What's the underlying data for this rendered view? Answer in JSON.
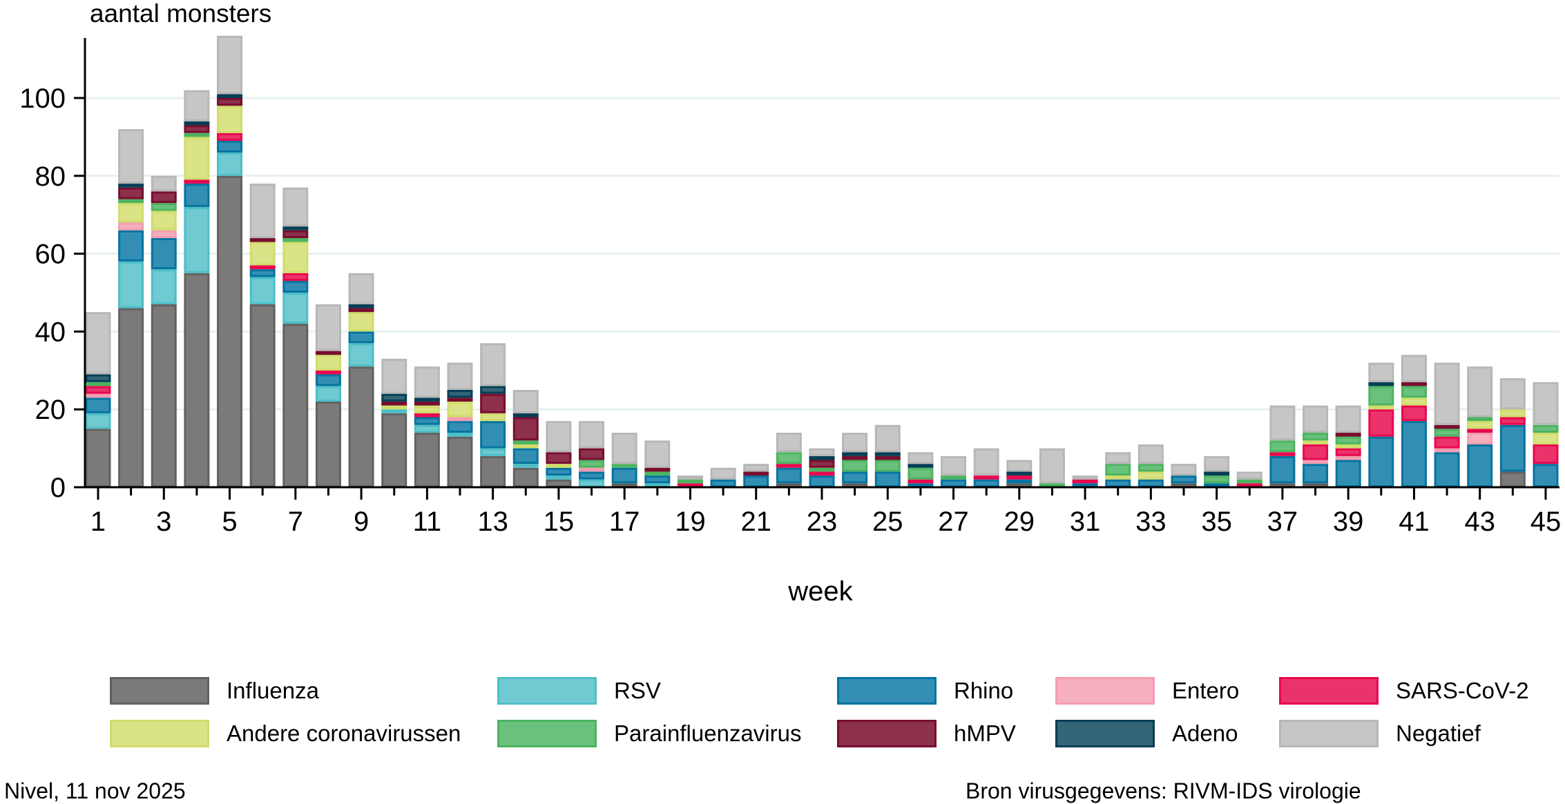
{
  "chart_data": {
    "type": "bar",
    "stacked": true,
    "title": "",
    "ylabel": "aantal monsters",
    "xlabel": "week",
    "ylim": [
      0,
      116
    ],
    "yticks": [
      0,
      20,
      40,
      60,
      80,
      100
    ],
    "xtick_labels": [
      "1",
      "3",
      "5",
      "7",
      "9",
      "11",
      "13",
      "15",
      "17",
      "19",
      "21",
      "23",
      "25",
      "27",
      "29",
      "31",
      "33",
      "35",
      "37",
      "39",
      "41",
      "43",
      "45"
    ],
    "grid": "horizontal",
    "legend_position": "bottom",
    "categories": [
      1,
      2,
      3,
      4,
      5,
      6,
      7,
      8,
      9,
      10,
      11,
      12,
      13,
      14,
      15,
      16,
      17,
      18,
      19,
      20,
      21,
      22,
      23,
      24,
      25,
      26,
      27,
      28,
      29,
      30,
      31,
      32,
      33,
      34,
      35,
      36,
      37,
      38,
      39,
      40,
      41,
      42,
      43,
      44,
      45
    ],
    "series": [
      {
        "name": "Influenza",
        "color": "#7b7a79",
        "border": "#636160",
        "values": [
          15,
          46,
          47,
          55,
          80,
          47,
          42,
          22,
          31,
          19,
          14,
          13,
          8,
          5,
          2,
          0,
          1,
          0,
          0,
          0,
          0,
          1,
          0,
          1,
          0,
          0,
          0,
          0,
          1,
          0,
          0,
          0,
          0,
          1,
          0,
          0,
          1,
          1,
          0,
          0,
          0,
          0,
          0,
          4,
          0
        ]
      },
      {
        "name": "RSV",
        "color": "#6fcad1",
        "border": "#4dbec7",
        "values": [
          4,
          12,
          9,
          17,
          6,
          7,
          8,
          4,
          6,
          1,
          2,
          1,
          2,
          1,
          1,
          2,
          0,
          1,
          0,
          0,
          0,
          0,
          0,
          0,
          0,
          0,
          0,
          0,
          0,
          0,
          0,
          0,
          0,
          0,
          0,
          0,
          0,
          0,
          0,
          0,
          0,
          0,
          0,
          0,
          0
        ]
      },
      {
        "name": "Rhino",
        "color": "#328fb3",
        "border": "#0573a0",
        "values": [
          4,
          8,
          8,
          6,
          3,
          2,
          3,
          3,
          3,
          0,
          2,
          3,
          7,
          4,
          2,
          2,
          4,
          2,
          0,
          2,
          3,
          4,
          3,
          3,
          4,
          1,
          2,
          2,
          1,
          0,
          1,
          2,
          2,
          2,
          1,
          0,
          7,
          5,
          7,
          13,
          17,
          9,
          11,
          12,
          6
        ]
      },
      {
        "name": "Entero",
        "color": "#f5afbf",
        "border": "#f29db2",
        "values": [
          1,
          2,
          2,
          0,
          0,
          0,
          0,
          0,
          0,
          0,
          0,
          1,
          0,
          0,
          0,
          1,
          0,
          0,
          0,
          0,
          0,
          0,
          0,
          0,
          0,
          0,
          0,
          0,
          0,
          0,
          0,
          0,
          0,
          0,
          0,
          0,
          0,
          1,
          1,
          0,
          0,
          1,
          3,
          0,
          0
        ]
      },
      {
        "name": "SARS-CoV-2",
        "color": "#ea336a",
        "border": "#e8084f",
        "values": [
          2,
          0,
          0,
          1,
          2,
          1,
          2,
          1,
          0,
          0,
          1,
          0,
          0,
          0,
          0,
          0,
          0,
          0,
          1,
          0,
          0,
          1,
          1,
          0,
          0,
          1,
          0,
          1,
          1,
          0,
          1,
          0,
          0,
          0,
          0,
          1,
          1,
          4,
          2,
          7,
          4,
          3,
          1,
          2,
          5
        ]
      },
      {
        "name": "Andere coronavirussen",
        "color": "#dae386",
        "border": "#d0dd6a",
        "values": [
          0,
          5,
          5,
          11,
          7,
          6,
          8,
          4,
          5,
          1,
          2,
          4,
          2,
          1,
          1,
          0,
          0,
          0,
          0,
          0,
          0,
          0,
          0,
          0,
          0,
          0,
          0,
          0,
          0,
          0,
          0,
          1,
          2,
          0,
          0,
          0,
          0,
          1,
          1,
          1,
          2,
          0,
          2,
          2,
          3
        ]
      },
      {
        "name": "Parainfluenzavirus",
        "color": "#6ac17b",
        "border": "#4cb460",
        "values": [
          1,
          1,
          2,
          1,
          0,
          0,
          1,
          0,
          0,
          0,
          0,
          0,
          0,
          1,
          0,
          2,
          1,
          1,
          1,
          0,
          0,
          3,
          1,
          3,
          3,
          3,
          1,
          0,
          0,
          1,
          0,
          3,
          2,
          0,
          2,
          1,
          3,
          2,
          2,
          5,
          3,
          2,
          1,
          0,
          2
        ]
      },
      {
        "name": "hMPV",
        "color": "#8c304c",
        "border": "#780e2e",
        "values": [
          0,
          3,
          3,
          2,
          2,
          1,
          2,
          1,
          1,
          1,
          1,
          1,
          5,
          6,
          3,
          3,
          0,
          1,
          0,
          0,
          1,
          0,
          2,
          1,
          1,
          0,
          0,
          0,
          0,
          0,
          0,
          0,
          0,
          0,
          0,
          0,
          0,
          0,
          1,
          0,
          1,
          1,
          0,
          0,
          0
        ]
      },
      {
        "name": "Adeno",
        "color": "#336577",
        "border": "#043e56",
        "values": [
          2,
          1,
          0,
          1,
          1,
          0,
          1,
          0,
          1,
          2,
          1,
          2,
          2,
          1,
          0,
          0,
          0,
          0,
          0,
          0,
          0,
          0,
          1,
          1,
          1,
          1,
          0,
          0,
          1,
          0,
          0,
          0,
          0,
          0,
          1,
          0,
          0,
          0,
          0,
          1,
          0,
          0,
          0,
          0,
          0
        ]
      },
      {
        "name": "Negatief",
        "color": "#c6c6c6",
        "border": "#b7b7b7",
        "values": [
          16,
          14,
          4,
          8,
          15,
          14,
          10,
          12,
          8,
          9,
          8,
          7,
          11,
          6,
          8,
          7,
          8,
          7,
          1,
          3,
          2,
          5,
          2,
          5,
          7,
          3,
          5,
          7,
          3,
          9,
          1,
          3,
          5,
          3,
          4,
          2,
          9,
          7,
          7,
          5,
          7,
          16,
          13,
          8,
          11
        ]
      }
    ],
    "legend_order": [
      "Influenza",
      "RSV",
      "Rhino",
      "Entero",
      "SARS-CoV-2",
      "Andere coronavirussen",
      "Parainfluenzavirus",
      "hMPV",
      "Adeno",
      "Negatief"
    ]
  },
  "footer": {
    "left": "Nivel, 11 nov 2025",
    "right": "Bron virusgegevens: RIVM-IDS virologie"
  }
}
